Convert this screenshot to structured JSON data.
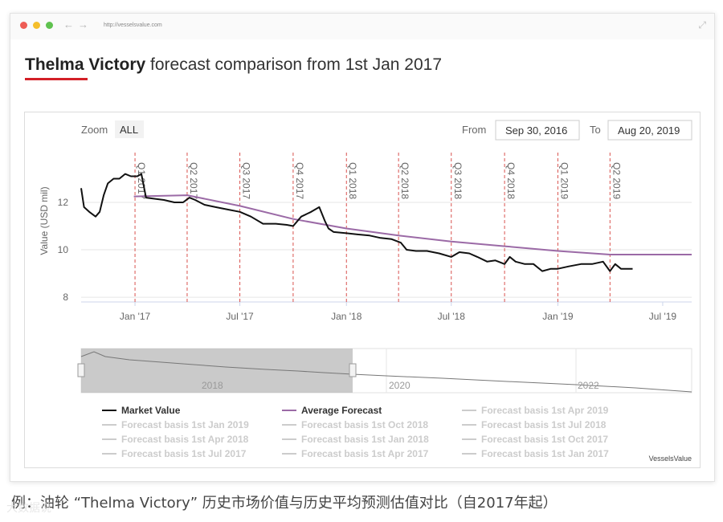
{
  "window": {
    "url": "http://vesselsvalue.com"
  },
  "heading": {
    "vessel": "Thelma Victory",
    "rest": " forecast comparison from 1st Jan 2017"
  },
  "controls": {
    "zoom_label": "Zoom",
    "zoom_all": "ALL",
    "from_label": "From",
    "from_value": "Sep 30, 2016",
    "to_label": "To",
    "to_value": "Aug 20, 2019"
  },
  "brand": "VesselsValue",
  "caption": "例：油轮 “Thelma Victory” 历史市场价值与历史平均预测估值对比（自2017年起）",
  "watermark": "大数据说",
  "colors": {
    "market": "#111111",
    "forecast": "#9b6aa6",
    "quarter_line": "#d9534f",
    "inactive": "#cccccc",
    "accent": "#d32027"
  },
  "chart_data": {
    "type": "line",
    "ylabel": "Value (USD mil)",
    "yticks": [
      8,
      10,
      12
    ],
    "ylim": [
      7.8,
      14.1
    ],
    "xlim": [
      "2016-09-30",
      "2019-08-20"
    ],
    "xticks": [
      {
        "label": "Jan '17",
        "date": "2017-01-01"
      },
      {
        "label": "Jul '17",
        "date": "2017-07-01"
      },
      {
        "label": "Jan '18",
        "date": "2018-01-01"
      },
      {
        "label": "Jul '18",
        "date": "2018-07-01"
      },
      {
        "label": "Jan '19",
        "date": "2019-01-01"
      },
      {
        "label": "Jul '19",
        "date": "2019-07-01"
      }
    ],
    "quarter_markers": [
      {
        "label": "Q1 2017",
        "date": "2017-01-01"
      },
      {
        "label": "Q2 2017",
        "date": "2017-04-01"
      },
      {
        "label": "Q3 2017",
        "date": "2017-07-01"
      },
      {
        "label": "Q4 2017",
        "date": "2017-10-01"
      },
      {
        "label": "Q1 2018",
        "date": "2018-01-01"
      },
      {
        "label": "Q2 2018",
        "date": "2018-04-01"
      },
      {
        "label": "Q3 2018",
        "date": "2018-07-01"
      },
      {
        "label": "Q4 2018",
        "date": "2018-10-01"
      },
      {
        "label": "Q1 2019",
        "date": "2019-01-01"
      },
      {
        "label": "Q2 2019",
        "date": "2019-04-01"
      }
    ],
    "series": [
      {
        "name": "Market Value",
        "points": [
          [
            "2016-09-30",
            12.6
          ],
          [
            "2016-10-05",
            11.8
          ],
          [
            "2016-10-14",
            11.6
          ],
          [
            "2016-10-25",
            11.4
          ],
          [
            "2016-11-01",
            11.6
          ],
          [
            "2016-11-08",
            12.3
          ],
          [
            "2016-11-15",
            12.8
          ],
          [
            "2016-11-25",
            13.0
          ],
          [
            "2016-12-05",
            13.0
          ],
          [
            "2016-12-15",
            13.2
          ],
          [
            "2016-12-25",
            13.1
          ],
          [
            "2017-01-05",
            13.1
          ],
          [
            "2017-01-12",
            13.2
          ],
          [
            "2017-01-20",
            12.2
          ],
          [
            "2017-02-05",
            12.15
          ],
          [
            "2017-02-20",
            12.1
          ],
          [
            "2017-03-10",
            12.0
          ],
          [
            "2017-03-25",
            12.0
          ],
          [
            "2017-04-05",
            12.2
          ],
          [
            "2017-04-15",
            12.1
          ],
          [
            "2017-05-01",
            11.9
          ],
          [
            "2017-05-20",
            11.8
          ],
          [
            "2017-06-10",
            11.7
          ],
          [
            "2017-07-01",
            11.6
          ],
          [
            "2017-07-20",
            11.4
          ],
          [
            "2017-08-10",
            11.1
          ],
          [
            "2017-09-01",
            11.1
          ],
          [
            "2017-09-20",
            11.05
          ],
          [
            "2017-10-01",
            11.0
          ],
          [
            "2017-10-15",
            11.4
          ],
          [
            "2017-11-01",
            11.6
          ],
          [
            "2017-11-15",
            11.8
          ],
          [
            "2017-11-25",
            11.2
          ],
          [
            "2017-12-01",
            10.9
          ],
          [
            "2017-12-10",
            10.75
          ],
          [
            "2018-01-01",
            10.7
          ],
          [
            "2018-01-20",
            10.65
          ],
          [
            "2018-02-10",
            10.6
          ],
          [
            "2018-03-01",
            10.5
          ],
          [
            "2018-03-20",
            10.45
          ],
          [
            "2018-04-05",
            10.3
          ],
          [
            "2018-04-15",
            10.0
          ],
          [
            "2018-05-01",
            9.95
          ],
          [
            "2018-05-20",
            9.95
          ],
          [
            "2018-06-10",
            9.85
          ],
          [
            "2018-07-01",
            9.7
          ],
          [
            "2018-07-15",
            9.9
          ],
          [
            "2018-08-01",
            9.85
          ],
          [
            "2018-08-15",
            9.7
          ],
          [
            "2018-09-01",
            9.5
          ],
          [
            "2018-09-15",
            9.55
          ],
          [
            "2018-10-01",
            9.4
          ],
          [
            "2018-10-10",
            9.7
          ],
          [
            "2018-10-20",
            9.5
          ],
          [
            "2018-11-05",
            9.4
          ],
          [
            "2018-11-20",
            9.4
          ],
          [
            "2018-12-05",
            9.1
          ],
          [
            "2018-12-20",
            9.2
          ],
          [
            "2019-01-01",
            9.2
          ],
          [
            "2019-01-20",
            9.3
          ],
          [
            "2019-02-10",
            9.4
          ],
          [
            "2019-03-01",
            9.4
          ],
          [
            "2019-03-20",
            9.5
          ],
          [
            "2019-04-01",
            9.1
          ],
          [
            "2019-04-10",
            9.4
          ],
          [
            "2019-04-20",
            9.2
          ],
          [
            "2019-05-10",
            9.2
          ]
        ]
      },
      {
        "name": "Average Forecast",
        "points": [
          [
            "2016-12-30",
            12.25
          ],
          [
            "2017-04-01",
            12.3
          ],
          [
            "2017-07-01",
            11.85
          ],
          [
            "2017-10-01",
            11.3
          ],
          [
            "2018-01-01",
            10.9
          ],
          [
            "2018-04-01",
            10.6
          ],
          [
            "2018-07-01",
            10.35
          ],
          [
            "2018-10-01",
            10.15
          ],
          [
            "2019-01-01",
            9.95
          ],
          [
            "2019-04-01",
            9.8
          ],
          [
            "2019-08-20",
            9.8
          ]
        ]
      }
    ],
    "legend": [
      [
        "Market Value",
        "Average Forecast",
        "Forecast basis 1st Apr 2019"
      ],
      [
        "Forecast basis 1st Jan 2019",
        "Forecast basis 1st Oct 2018",
        "Forecast basis 1st Jul 2018"
      ],
      [
        "Forecast basis 1st Apr 2018",
        "Forecast basis 1st Jan 2018",
        "Forecast basis 1st Oct 2017"
      ],
      [
        "Forecast basis 1st Jul 2017",
        "Forecast basis 1st Apr 2017",
        "Forecast basis 1st Jan 2017"
      ]
    ],
    "legend_active": [
      "Market Value",
      "Average Forecast"
    ],
    "navigator": {
      "labels": [
        "2018",
        "2020",
        "2022"
      ]
    }
  }
}
